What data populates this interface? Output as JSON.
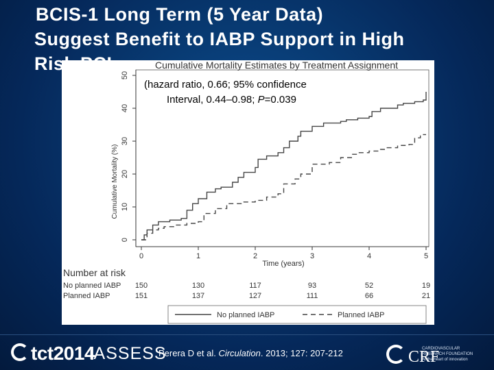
{
  "slide": {
    "title_line1": "BCIS-1 Long Term (5 Year Data)",
    "title_line2": "Suggest Benefit to IABP Support in High",
    "title_line3": "Risk PCI",
    "citation_prefix": "Perera D et al. ",
    "citation_journal": "Circulation",
    "citation_suffix": ". 2013; 127: 207-212",
    "logo_tct": "tct2014",
    "logo_iassess": "iASSESS",
    "logo_crf": "CRF",
    "logo_crf_sub1": "CARDIOVASCULAR",
    "logo_crf_sub2": "RESEARCH FOUNDATION",
    "logo_crf_sub3": "At the heart of innovation",
    "colors": {
      "background": "#083a72",
      "text": "#ffffff",
      "panel": "#ffffff"
    }
  },
  "chart_data": {
    "type": "line",
    "title": "Cumulative Mortality Estimates by Treatment Assignment",
    "annotation_line1": "(hazard ratio, 0.66; 95% confidence",
    "annotation_line2_pre": "Interval, 0.44–0.98; ",
    "annotation_line2_p": "P",
    "annotation_line2_post": "=0.039",
    "xlabel": "Time (years)",
    "ylabel": "Cumulative Mortality (%)",
    "xlim": [
      0,
      5
    ],
    "ylim": [
      0,
      50
    ],
    "xticks": [
      "0",
      "1",
      "2",
      "3",
      "4",
      "5"
    ],
    "yticks": [
      "0",
      "10",
      "20",
      "30",
      "40",
      "50"
    ],
    "series": [
      {
        "name": "No planned IABP",
        "style": "solid",
        "x": [
          0,
          0.05,
          0.1,
          0.2,
          0.3,
          0.5,
          0.7,
          0.8,
          0.9,
          1.0,
          1.15,
          1.3,
          1.4,
          1.6,
          1.7,
          1.8,
          2.0,
          2.05,
          2.2,
          2.4,
          2.5,
          2.6,
          2.75,
          2.8,
          3.0,
          3.2,
          3.5,
          3.6,
          3.8,
          4.0,
          4.05,
          4.2,
          4.5,
          4.6,
          4.8,
          4.95,
          5.0
        ],
        "y": [
          0,
          1.5,
          3,
          4.5,
          5.5,
          6,
          6.5,
          9,
          11,
          12.5,
          14.5,
          15.5,
          16,
          17.5,
          19,
          20.5,
          22,
          24.5,
          25.5,
          26.5,
          28,
          30,
          31.5,
          33,
          34.5,
          35.5,
          36,
          36.5,
          37,
          37.5,
          39,
          40,
          41,
          41.5,
          42,
          42.5,
          45
        ]
      },
      {
        "name": "Planned IABP",
        "style": "dashed",
        "x": [
          0,
          0.1,
          0.2,
          0.3,
          0.4,
          0.6,
          0.8,
          1.0,
          1.1,
          1.3,
          1.5,
          1.8,
          2.0,
          2.2,
          2.4,
          2.5,
          2.7,
          2.8,
          3.0,
          3.3,
          3.5,
          3.7,
          3.8,
          4.0,
          4.2,
          4.3,
          4.5,
          4.55,
          4.7,
          4.8,
          4.9,
          5.0
        ],
        "y": [
          0,
          2,
          3,
          3.5,
          4,
          4.5,
          5,
          5.5,
          8,
          9.5,
          11,
          11.5,
          12,
          13,
          14,
          17,
          18.5,
          20,
          23,
          23.5,
          25,
          26,
          26.5,
          27,
          27.5,
          28,
          28.5,
          28.7,
          29,
          31,
          32,
          32
        ]
      }
    ],
    "number_at_risk": {
      "heading": "Number at risk",
      "rows": [
        {
          "label": "No planned IABP",
          "values": [
            "150",
            "130",
            "117",
            "93",
            "52",
            "19"
          ]
        },
        {
          "label": "Planned IABP",
          "values": [
            "151",
            "137",
            "127",
            "111",
            "66",
            "21"
          ]
        }
      ]
    },
    "legend": [
      {
        "label": "No planned IABP",
        "style": "solid"
      },
      {
        "label": "Planned IABP",
        "style": "dashed"
      }
    ],
    "legend_position": "bottom"
  }
}
